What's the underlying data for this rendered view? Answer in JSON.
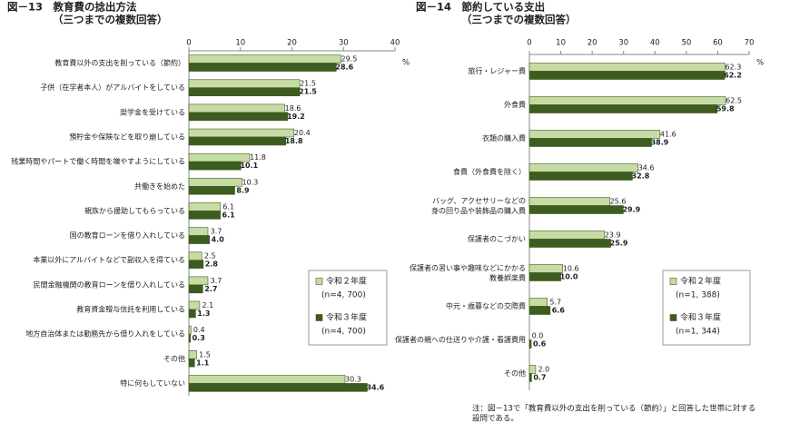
{
  "chart_data": [
    {
      "type": "bar",
      "orientation": "horizontal",
      "title": "図－13　教育費の捻出方法",
      "subtitle": "（三つまでの複数回答）",
      "unit": "%",
      "categories": [
        "教育費以外の支出を削っている（節約）",
        "子供（在学者本人）がアルバイトをしている",
        "奨学金を受けている",
        "預貯金や保険などを取り崩している",
        "残業時間やパートで働く時間を増やすようにしている",
        "共働きを始めた",
        "親族から援助してもらっている",
        "国の教育ローンを借り入れしている",
        "本業以外にアルバイトなどで副収入を得ている",
        "民間金融機関の教育ローンを借り入れしている",
        "教育資金贈与信託を利用している",
        "地方自治体または勤務先から借り入れをしている",
        "その他",
        "特に何もしていない"
      ],
      "series": [
        {
          "name": "令和２年度",
          "n": "(n=4, 700)",
          "color": "#c6dca4",
          "values": [
            29.5,
            21.5,
            18.6,
            20.4,
            11.8,
            10.3,
            6.1,
            3.7,
            2.5,
            3.7,
            2.1,
            0.4,
            1.5,
            30.3
          ],
          "value_labels": [
            "29.5",
            "21.5",
            "18.6",
            "20.4",
            "11.8",
            "10.3",
            "6.1",
            "3.7",
            "2.5",
            "3.7",
            "2.1",
            "0.4",
            "1.5",
            "30.3"
          ]
        },
        {
          "name": "令和３年度",
          "n": "(n=4, 700)",
          "color": "#3e5c1f",
          "values": [
            28.6,
            21.5,
            19.2,
            18.8,
            10.1,
            8.9,
            6.1,
            4.0,
            2.8,
            2.7,
            1.3,
            0.3,
            1.1,
            34.6
          ],
          "value_labels": [
            "28.6",
            "21.5",
            "19.2",
            "18.8",
            "10.1",
            "8.9",
            "6.1",
            "4.0",
            "2.8",
            "2.7",
            "1.3",
            "0.3",
            "1.1",
            "34.6"
          ]
        }
      ],
      "xlim": [
        0,
        40
      ],
      "xticks": [
        0,
        10,
        20,
        30,
        40
      ]
    },
    {
      "type": "bar",
      "orientation": "horizontal",
      "title": "図－14　節約している支出",
      "subtitle": "（三つまでの複数回答）",
      "unit": "%",
      "categories": [
        "旅行・レジャー費",
        "外食費",
        "衣類の購入費",
        "食費（外食費を除く）",
        "バッグ、アクセサリーなどの\n身の回り品や装飾品の購入費",
        "保護者のこづかい",
        "保護者の習い事や趣味などにかかる\n教養娯楽費",
        "中元・歳暮などの交際費",
        "保護者の親への仕送りや介護・看護費用",
        "その他"
      ],
      "series": [
        {
          "name": "令和２年度",
          "n": "(n=1, 388)",
          "color": "#c6dca4",
          "values": [
            62.3,
            62.5,
            41.6,
            34.6,
            25.6,
            23.9,
            10.6,
            5.7,
            0.0,
            2.0
          ],
          "value_labels": [
            "62.3",
            "62.5",
            "41.6",
            "34.6",
            "25.6",
            "23.9",
            "10.6",
            "5.7",
            "0.0",
            "2.0"
          ]
        },
        {
          "name": "令和３年度",
          "n": "(n=1, 344)",
          "color": "#3e5c1f",
          "values": [
            62.2,
            59.8,
            38.9,
            32.8,
            29.9,
            25.9,
            10.0,
            6.6,
            0.6,
            0.7
          ],
          "value_labels": [
            "62.2",
            "59.8",
            "38.9",
            "32.8",
            "29.9",
            "25.9",
            "10.0",
            "6.6",
            "0.6",
            "0.7"
          ]
        }
      ],
      "xlim": [
        0,
        70
      ],
      "xticks": [
        0,
        10,
        20,
        30,
        40,
        50,
        60,
        70
      ],
      "note": "注：図－13で「教育費以外の支出を削っている（節約）」と回答した世帯に対する\n設問である。"
    }
  ]
}
